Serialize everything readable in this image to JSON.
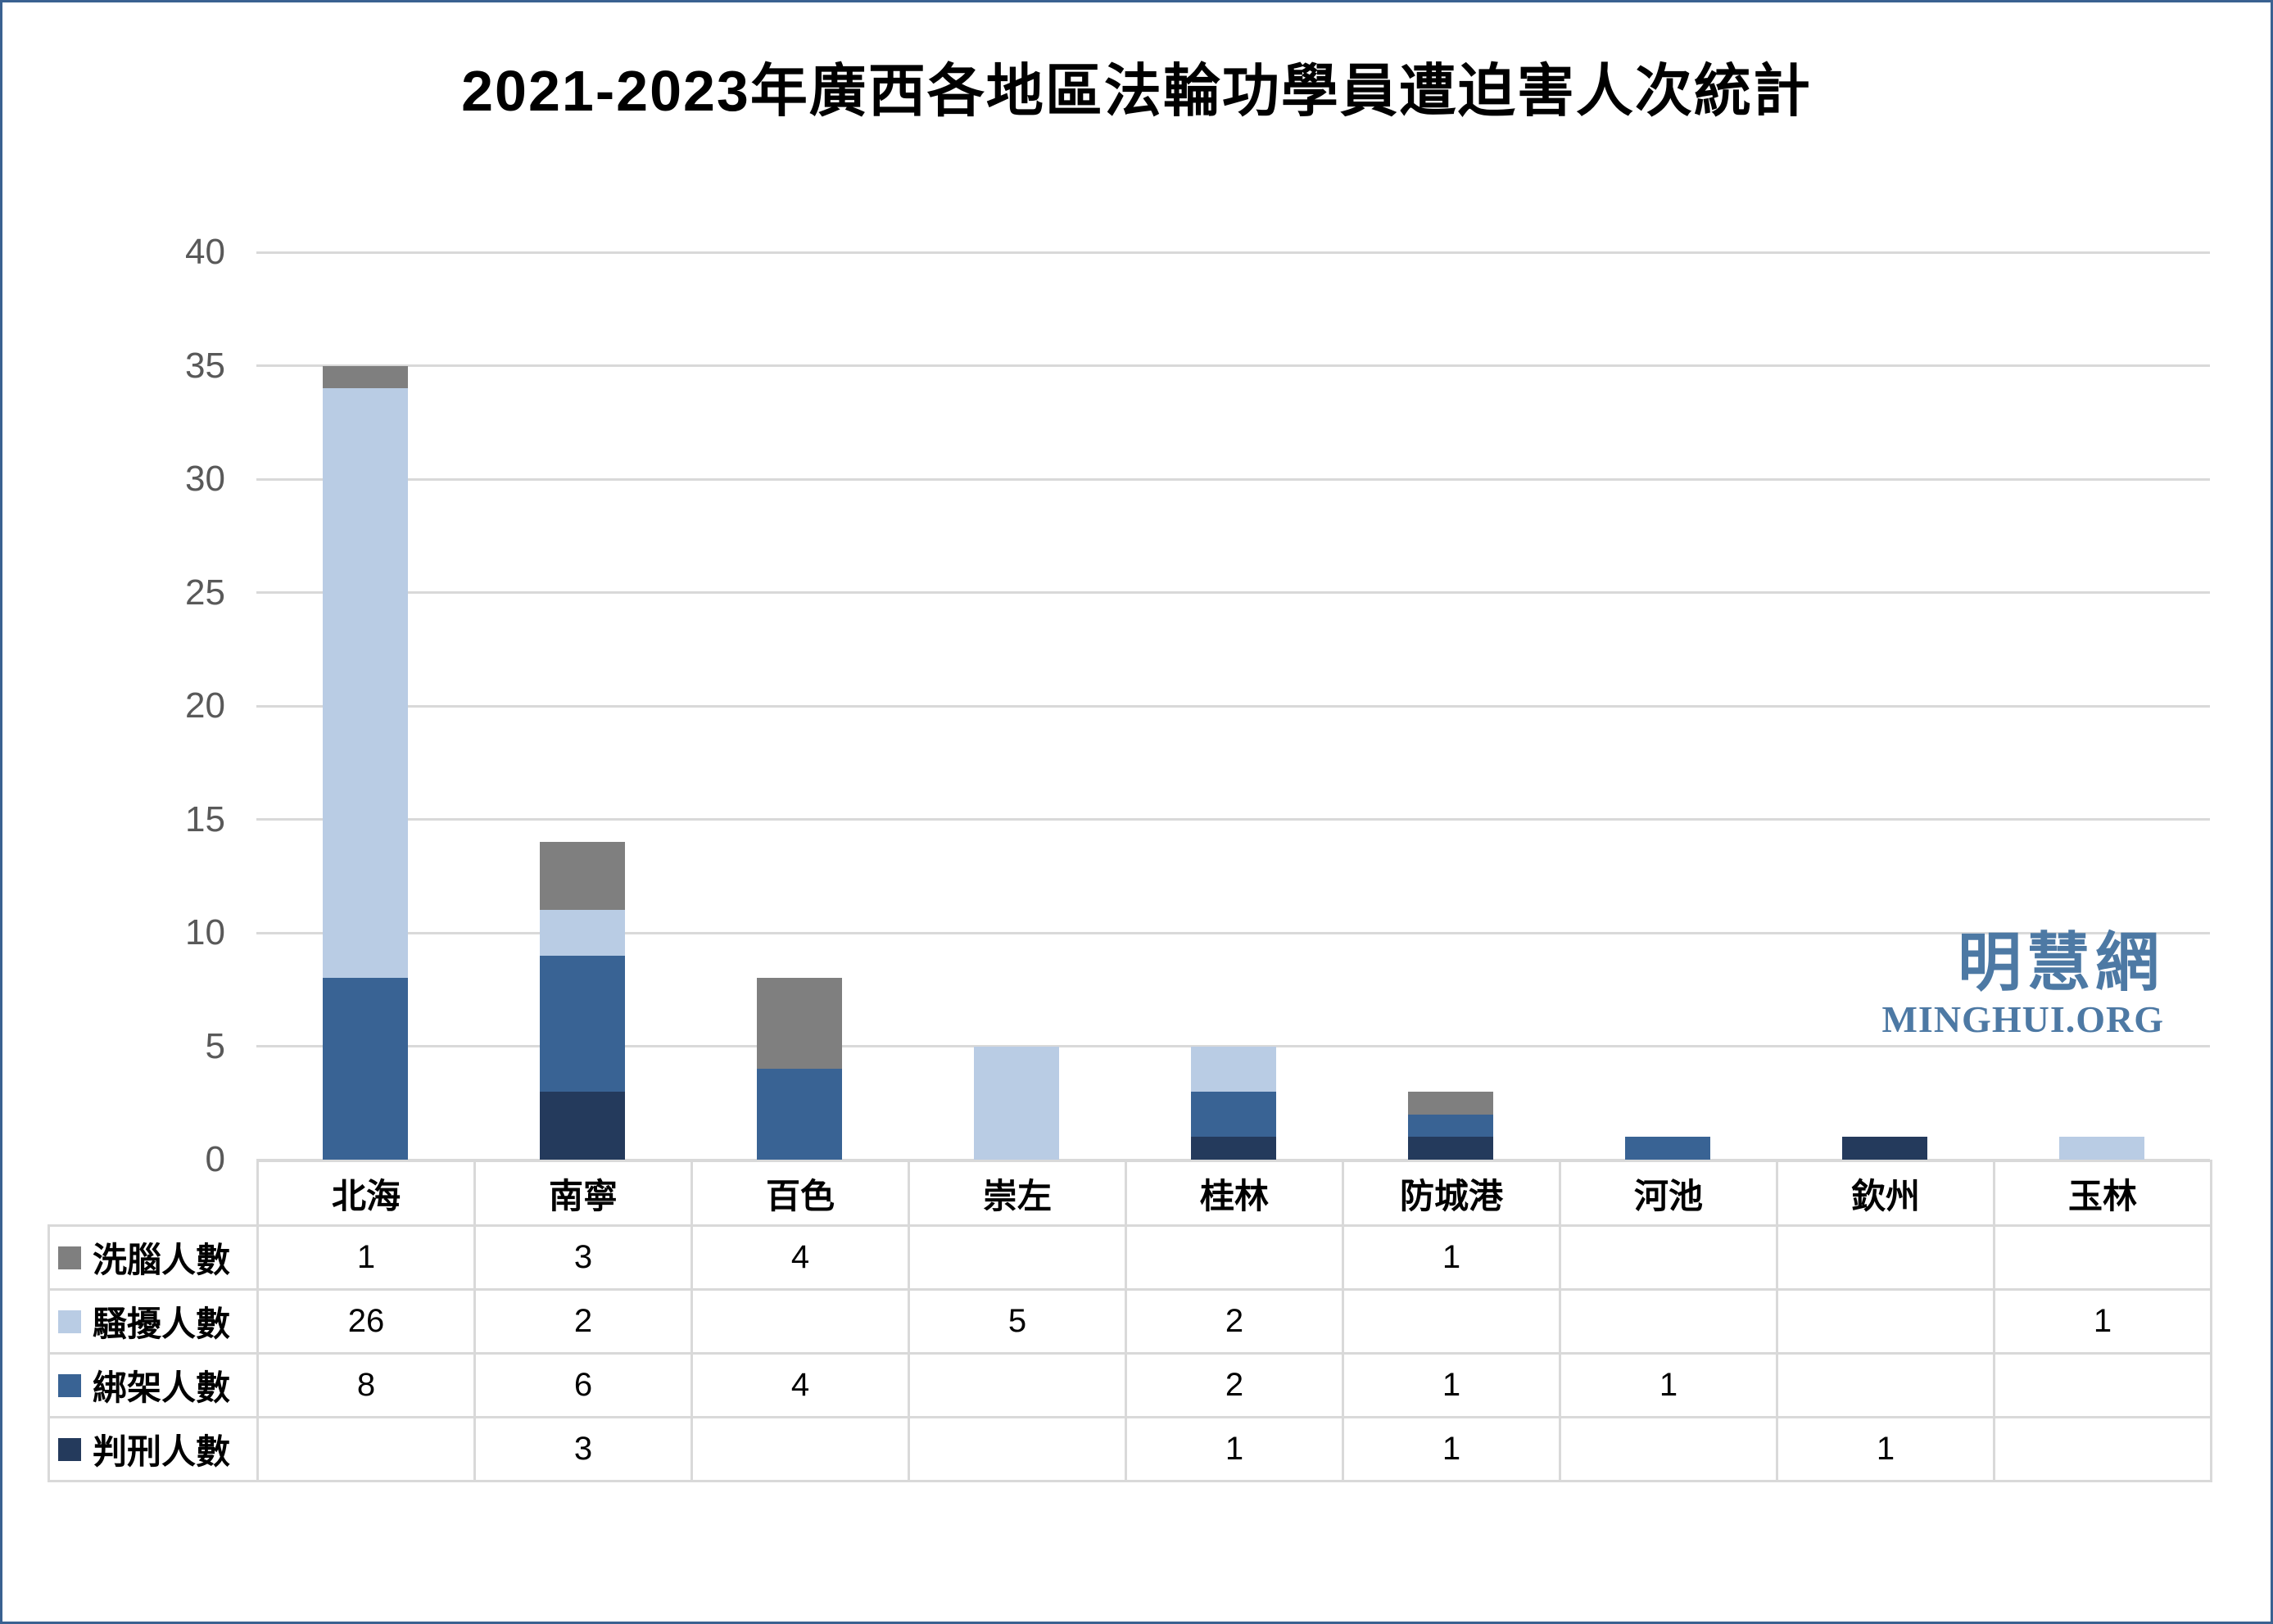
{
  "chart": {
    "title": "2021-2023年廣西各地區法輪功學員遭迫害人次統計"
  },
  "watermark": {
    "chinese": "明慧網",
    "latin": "MINGHUI.ORG",
    "color": "#4d79a4"
  },
  "chart_data": {
    "type": "bar",
    "stacked": true,
    "title": "2021-2023年廣西各地區法輪功學員遭迫害人次統計",
    "categories": [
      "北海",
      "南寧",
      "百色",
      "崇左",
      "桂林",
      "防城港",
      "河池",
      "欽州",
      "玉林"
    ],
    "series": [
      {
        "name": "洗腦人數",
        "color": "#7f7f7f",
        "values": [
          1,
          3,
          4,
          null,
          null,
          1,
          null,
          null,
          null
        ]
      },
      {
        "name": "騷擾人數",
        "color": "#b9cce4",
        "values": [
          26,
          2,
          null,
          5,
          2,
          null,
          null,
          null,
          1
        ]
      },
      {
        "name": "綁架人數",
        "color": "#396394",
        "values": [
          8,
          6,
          4,
          null,
          2,
          1,
          1,
          null,
          null
        ]
      },
      {
        "name": "判刑人數",
        "color": "#243a5c",
        "values": [
          null,
          3,
          null,
          null,
          1,
          1,
          null,
          1,
          null
        ]
      }
    ],
    "stack_order_bottom_to_top": [
      "判刑人數",
      "綁架人數",
      "騷擾人數",
      "洗腦人數"
    ],
    "category_totals": [
      35,
      14,
      8,
      5,
      5,
      3,
      1,
      1,
      1
    ],
    "ylim": [
      0,
      40
    ],
    "yticks": [
      0,
      5,
      10,
      15,
      20,
      25,
      30,
      35,
      40
    ],
    "grid": "horizontal",
    "legend_position": "table-rows",
    "axis_label_color": "#595959",
    "gridline_color": "#d9d9d9",
    "frame_border_color": "#3a6191"
  }
}
